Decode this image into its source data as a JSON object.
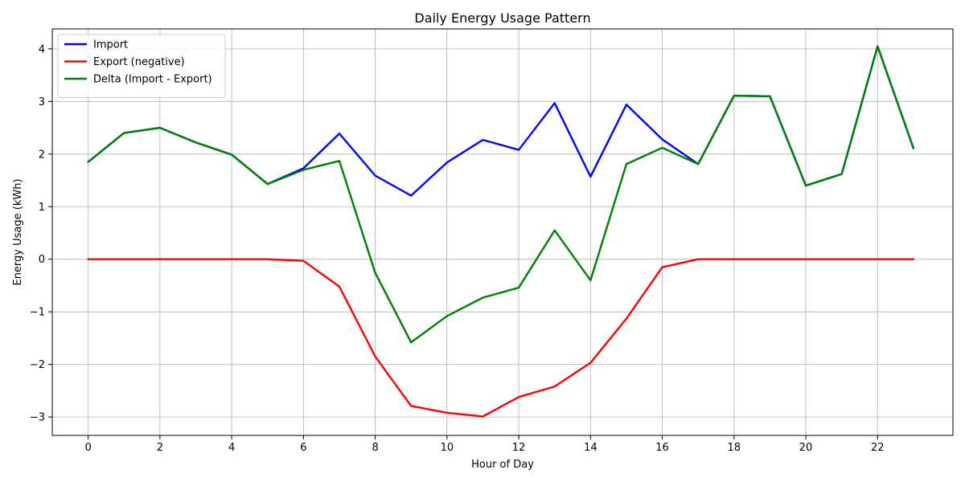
{
  "chart_data": {
    "type": "line",
    "title": "Daily Energy Usage Pattern",
    "xlabel": "Hour of Day",
    "ylabel": "Energy Usage (kWh)",
    "x": [
      0,
      1,
      2,
      3,
      4,
      5,
      6,
      7,
      8,
      9,
      10,
      11,
      12,
      13,
      14,
      15,
      16,
      17,
      18,
      19,
      20,
      21,
      22,
      23
    ],
    "xlim": [
      -1.0,
      24.1
    ],
    "ylim": [
      -3.35,
      4.38
    ],
    "xticks": [
      0,
      2,
      4,
      6,
      8,
      10,
      12,
      14,
      16,
      18,
      20,
      22
    ],
    "yticks": [
      -3,
      -2,
      -1,
      0,
      1,
      2,
      3,
      4
    ],
    "ytick_labels": [
      "−3",
      "−2",
      "−1",
      "0",
      "1",
      "2",
      "3",
      "4"
    ],
    "grid": true,
    "legend_position": "top-left",
    "series": [
      {
        "name": "Import",
        "color": "#0000ff",
        "values": [
          1.85,
          2.4,
          2.5,
          2.22,
          1.99,
          1.43,
          1.73,
          2.39,
          1.59,
          1.21,
          1.84,
          2.27,
          2.08,
          2.97,
          1.57,
          2.94,
          2.28,
          1.81,
          3.11,
          3.1,
          1.4,
          1.62,
          4.05,
          2.11
        ]
      },
      {
        "name": "Export (negative)",
        "color": "#ff0000",
        "values": [
          0,
          0,
          0,
          0,
          0,
          0,
          -0.03,
          -0.52,
          -1.85,
          -2.79,
          -2.92,
          -2.99,
          -2.62,
          -2.42,
          -1.97,
          -1.13,
          -0.15,
          0,
          0,
          0,
          0,
          0,
          0,
          0
        ]
      },
      {
        "name": "Delta (Import - Export)",
        "color": "#008000",
        "values": [
          1.85,
          2.4,
          2.5,
          2.22,
          1.99,
          1.43,
          1.7,
          1.87,
          -0.26,
          -1.58,
          -1.08,
          -0.73,
          -0.54,
          0.55,
          -0.4,
          1.81,
          2.12,
          1.81,
          3.11,
          3.1,
          1.4,
          1.62,
          4.05,
          2.11
        ]
      }
    ]
  }
}
